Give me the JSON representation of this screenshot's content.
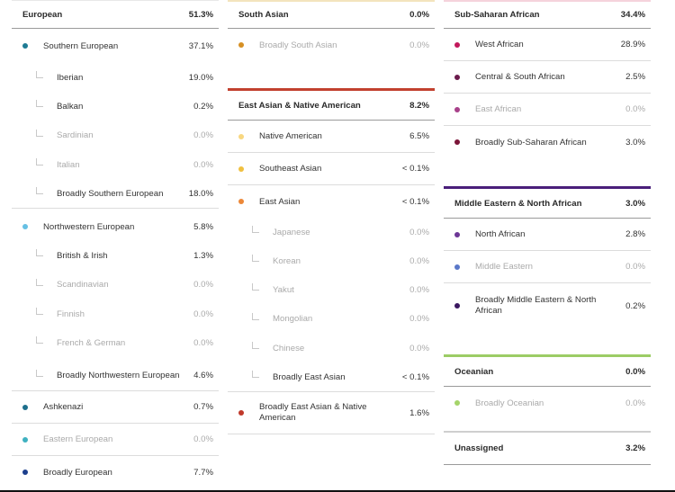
{
  "colors": {
    "southern_european": "#1e7b94",
    "northwestern_european": "#66c0e4",
    "ashkenazi": "#1d6f8c",
    "eastern_european": "#3fb1c0",
    "broadly_european": "#1c3f8d",
    "south_asian_rule": "#e6b84a",
    "broadly_south_asian": "#d69024",
    "east_asian_rule": "#c2412f",
    "native_american": "#f8d780",
    "southeast_asian": "#f0c040",
    "east_asian": "#ec8838",
    "broadly_east_asian_native_american": "#c0392b",
    "sub_saharan_rule": "#b71c5e",
    "west_african": "#c2185b",
    "central_south_african": "#6b1b4c",
    "east_african": "#a8418a",
    "broadly_sub_saharan": "#7b1538",
    "mena_rule": "#4a1f7a",
    "north_african": "#6d3796",
    "middle_eastern": "#5a78c8",
    "broadly_mena": "#3a1760",
    "oceanian_rule": "#9ccc65",
    "broadly_oceanian": "#a5d46a"
  },
  "european": {
    "title": "European",
    "pct": "51.3%",
    "southern": {
      "label": "Southern European",
      "pct": "37.1%"
    },
    "iberian": {
      "label": "Iberian",
      "pct": "19.0%"
    },
    "balkan": {
      "label": "Balkan",
      "pct": "0.2%"
    },
    "sardinian": {
      "label": "Sardinian",
      "pct": "0.0%"
    },
    "italian": {
      "label": "Italian",
      "pct": "0.0%"
    },
    "broadly_southern": {
      "label": "Broadly Southern European",
      "pct": "18.0%"
    },
    "northwestern": {
      "label": "Northwestern European",
      "pct": "5.8%"
    },
    "british_irish": {
      "label": "British & Irish",
      "pct": "1.3%"
    },
    "scandinavian": {
      "label": "Scandinavian",
      "pct": "0.0%"
    },
    "finnish": {
      "label": "Finnish",
      "pct": "0.0%"
    },
    "french_german": {
      "label": "French & German",
      "pct": "0.0%"
    },
    "broadly_northwestern": {
      "label": "Broadly Northwestern European",
      "pct": "4.6%"
    },
    "ashkenazi": {
      "label": "Ashkenazi",
      "pct": "0.7%"
    },
    "eastern": {
      "label": "Eastern European",
      "pct": "0.0%"
    },
    "broadly": {
      "label": "Broadly European",
      "pct": "7.7%"
    }
  },
  "south_asian": {
    "title": "South Asian",
    "pct": "0.0%",
    "broadly": {
      "label": "Broadly South Asian",
      "pct": "0.0%"
    }
  },
  "east_asian_native_american": {
    "title": "East Asian & Native American",
    "pct": "8.2%",
    "native_american": {
      "label": "Native American",
      "pct": "6.5%"
    },
    "southeast_asian": {
      "label": "Southeast Asian",
      "pct": "< 0.1%"
    },
    "east_asian": {
      "label": "East Asian",
      "pct": "< 0.1%"
    },
    "japanese": {
      "label": "Japanese",
      "pct": "0.0%"
    },
    "korean": {
      "label": "Korean",
      "pct": "0.0%"
    },
    "yakut": {
      "label": "Yakut",
      "pct": "0.0%"
    },
    "mongolian": {
      "label": "Mongolian",
      "pct": "0.0%"
    },
    "chinese": {
      "label": "Chinese",
      "pct": "0.0%"
    },
    "broadly_east_asian": {
      "label": "Broadly East Asian",
      "pct": "< 0.1%"
    },
    "broadly": {
      "label": "Broadly East Asian & Native American",
      "pct": "1.6%"
    }
  },
  "sub_saharan": {
    "title": "Sub-Saharan African",
    "pct": "34.4%",
    "west": {
      "label": "West African",
      "pct": "28.9%"
    },
    "central_south": {
      "label": "Central & South African",
      "pct": "2.5%"
    },
    "east": {
      "label": "East African",
      "pct": "0.0%"
    },
    "broadly": {
      "label": "Broadly Sub-Saharan African",
      "pct": "3.0%"
    }
  },
  "mena": {
    "title": "Middle Eastern & North African",
    "pct": "3.0%",
    "north_african": {
      "label": "North African",
      "pct": "2.8%"
    },
    "middle_eastern": {
      "label": "Middle Eastern",
      "pct": "0.0%"
    },
    "broadly": {
      "label": "Broadly Middle Eastern & North African",
      "pct": "0.2%"
    }
  },
  "oceanian": {
    "title": "Oceanian",
    "pct": "0.0%",
    "broadly": {
      "label": "Broadly Oceanian",
      "pct": "0.0%"
    }
  },
  "unassigned": {
    "title": "Unassigned",
    "pct": "3.2%"
  }
}
